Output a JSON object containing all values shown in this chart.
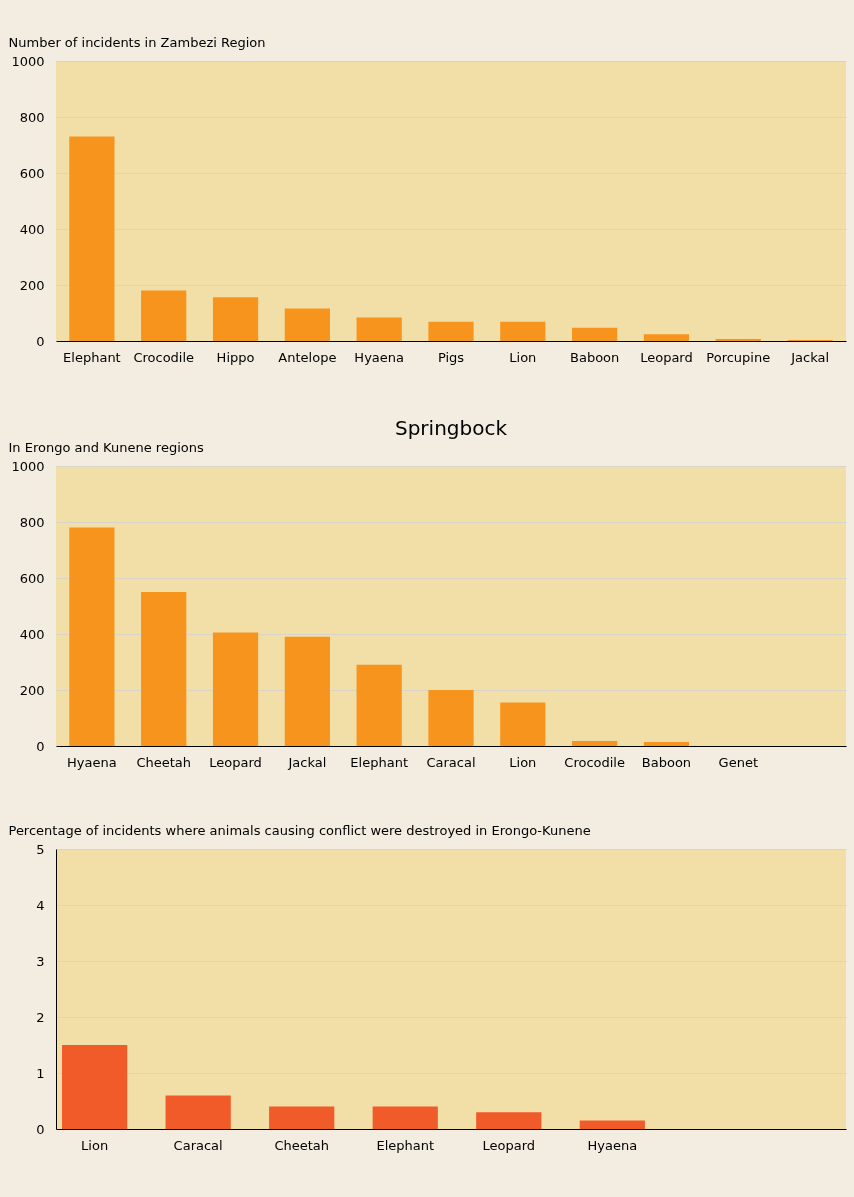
{
  "chart_data": [
    {
      "type": "bar",
      "ylabel": "Number of incidents in Zambezi Region",
      "categories": [
        "Elephant",
        "Crocodile",
        "Hippo",
        "Antelope",
        "Hyaena",
        "Pigs",
        "Lion",
        "Baboon",
        "Leopard",
        "Porcupine",
        "Jackal"
      ],
      "values": [
        730,
        180,
        156,
        116,
        84,
        69,
        69,
        47,
        24,
        7,
        4
      ],
      "color": "#f7941d",
      "ylim": [
        0,
        1000
      ],
      "yticks": [
        0,
        200,
        400,
        600,
        800,
        1000
      ],
      "grid": "y"
    },
    {
      "type": "bar",
      "title": "Springbock",
      "ylabel": "In Erongo and Kunene regions",
      "categories": [
        "Hyaena",
        "Cheetah",
        "Leopard",
        "Jackal",
        "Elephant",
        "Caracal",
        "Lion",
        "Crocodile",
        "Baboon",
        "Genet"
      ],
      "values": [
        780,
        550,
        405,
        390,
        290,
        200,
        155,
        18,
        14,
        0
      ],
      "color": "#f7941d",
      "ylim": [
        0,
        1000
      ],
      "yticks": [
        0,
        200,
        400,
        600,
        800,
        1000
      ],
      "grid": "y"
    },
    {
      "type": "bar",
      "ylabel": "Percentage of incidents where animals causing conflict were destroyed in Erongo-Kunene",
      "categories": [
        "Lion",
        "Caracal",
        "Cheetah",
        "Elephant",
        "Leopard",
        "Hyaena"
      ],
      "values": [
        1.5,
        0.6,
        0.4,
        0.4,
        0.3,
        0.15
      ],
      "color": "#f15a29",
      "ylim": [
        0,
        5
      ],
      "yticks": [
        0,
        1,
        2,
        3,
        4,
        5
      ],
      "grid": "y"
    }
  ]
}
